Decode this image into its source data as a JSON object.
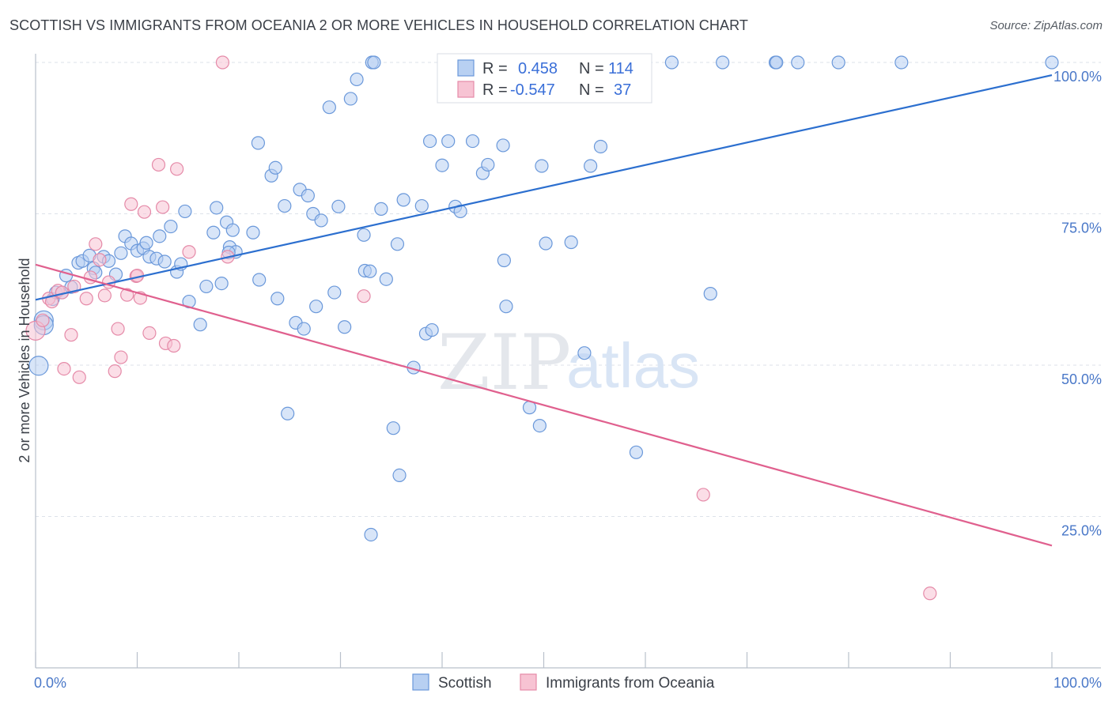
{
  "header": {
    "title": "SCOTTISH VS IMMIGRANTS FROM OCEANIA 2 OR MORE VEHICLES IN HOUSEHOLD CORRELATION CHART",
    "source": "Source: ZipAtlas.com"
  },
  "watermark": {
    "zip": "ZIP",
    "atlas": "atlas"
  },
  "legend": {
    "rows": [
      {
        "r_label": "R =",
        "r_value": "0.458",
        "n_label": "N =",
        "n_value": "114"
      },
      {
        "r_label": "R =",
        "r_value": "-0.547",
        "n_label": "N =",
        "n_value": "37"
      }
    ]
  },
  "bottom_legend": {
    "items": [
      "Scottish",
      "Immigrants from Oceania"
    ]
  },
  "colors": {
    "blue_fill": "#b8d0f2",
    "blue_stroke": "#6a98da",
    "blue_line": "#2c6fcf",
    "pink_fill": "#f7c3d3",
    "pink_stroke": "#e58aa8",
    "pink_line": "#e0608e",
    "grid": "#dde2ea",
    "axis": "#b9c0cb"
  },
  "chart_data": {
    "type": "scatter",
    "xlabel": "",
    "ylabel": "2 or more Vehicles in Household",
    "xlim": [
      0,
      100
    ],
    "ylim": [
      0,
      100
    ],
    "x_tick_labels": [
      "0.0%",
      "100.0%"
    ],
    "y_ticks": [
      25,
      50,
      75,
      100
    ],
    "y_tick_labels": [
      "25.0%",
      "50.0%",
      "75.0%",
      "100.0%"
    ],
    "grid": true,
    "series": [
      {
        "name": "Scottish",
        "color": "#6a98da",
        "trend": {
          "x": [
            0,
            100
          ],
          "y": [
            60.8,
            97.9
          ]
        },
        "points": [
          [
            0.3,
            49.9
          ],
          [
            0.8,
            57.4
          ],
          [
            0.8,
            56.6
          ],
          [
            1.7,
            60.9
          ],
          [
            2.0,
            62.0
          ],
          [
            2.6,
            62.0
          ],
          [
            3.0,
            64.8
          ],
          [
            3.5,
            62.9
          ],
          [
            4.2,
            66.9
          ],
          [
            4.6,
            67.2
          ],
          [
            5.3,
            68.1
          ],
          [
            5.7,
            66.0
          ],
          [
            5.9,
            65.3
          ],
          [
            6.7,
            67.9
          ],
          [
            7.2,
            67.2
          ],
          [
            7.9,
            65.0
          ],
          [
            8.4,
            68.5
          ],
          [
            8.8,
            71.3
          ],
          [
            9.4,
            70.1
          ],
          [
            10.0,
            68.9
          ],
          [
            10.6,
            69.3
          ],
          [
            10.9,
            70.2
          ],
          [
            11.2,
            67.9
          ],
          [
            11.9,
            67.6
          ],
          [
            12.2,
            71.3
          ],
          [
            12.7,
            67.1
          ],
          [
            13.3,
            72.9
          ],
          [
            13.9,
            65.4
          ],
          [
            14.3,
            66.7
          ],
          [
            14.7,
            75.4
          ],
          [
            15.1,
            60.5
          ],
          [
            16.2,
            56.7
          ],
          [
            16.8,
            63.0
          ],
          [
            17.5,
            71.9
          ],
          [
            17.8,
            76.0
          ],
          [
            18.3,
            63.5
          ],
          [
            18.8,
            73.6
          ],
          [
            19.1,
            69.5
          ],
          [
            19.4,
            72.3
          ],
          [
            19.7,
            68.7
          ],
          [
            21.4,
            71.9
          ],
          [
            21.9,
            86.7
          ],
          [
            22.0,
            64.1
          ],
          [
            23.2,
            81.3
          ],
          [
            23.6,
            82.6
          ],
          [
            23.8,
            61.0
          ],
          [
            24.5,
            76.3
          ],
          [
            24.8,
            42.0
          ],
          [
            25.6,
            57.0
          ],
          [
            26.0,
            79.0
          ],
          [
            26.4,
            56.0
          ],
          [
            26.8,
            78.0
          ],
          [
            27.3,
            75.0
          ],
          [
            27.6,
            59.7
          ],
          [
            28.1,
            73.9
          ],
          [
            28.9,
            92.6
          ],
          [
            29.4,
            62.0
          ],
          [
            29.8,
            76.2
          ],
          [
            30.4,
            56.3
          ],
          [
            31.0,
            94.0
          ],
          [
            31.6,
            97.2
          ],
          [
            32.3,
            71.5
          ],
          [
            32.4,
            65.6
          ],
          [
            32.9,
            65.5
          ],
          [
            33.1,
            100.0
          ],
          [
            33.3,
            100.0
          ],
          [
            34.0,
            75.8
          ],
          [
            34.5,
            64.2
          ],
          [
            35.2,
            39.6
          ],
          [
            35.6,
            70.0
          ],
          [
            35.8,
            31.8
          ],
          [
            36.2,
            77.3
          ],
          [
            37.2,
            49.6
          ],
          [
            38.0,
            76.3
          ],
          [
            38.4,
            55.2
          ],
          [
            38.8,
            87.0
          ],
          [
            39.0,
            55.8
          ],
          [
            40.0,
            83.0
          ],
          [
            40.6,
            87.0
          ],
          [
            41.3,
            76.2
          ],
          [
            41.8,
            75.4
          ],
          [
            43.0,
            87.0
          ],
          [
            44.0,
            81.7
          ],
          [
            44.5,
            83.1
          ],
          [
            46.0,
            86.3
          ],
          [
            46.1,
            67.3
          ],
          [
            46.3,
            59.7
          ],
          [
            48.0,
            95.0
          ],
          [
            48.6,
            43.0
          ],
          [
            49.0,
            100.0
          ],
          [
            49.6,
            40.0
          ],
          [
            49.8,
            82.9
          ],
          [
            50.2,
            70.1
          ],
          [
            51.4,
            100.0
          ],
          [
            52.7,
            70.3
          ],
          [
            53.4,
            100.0
          ],
          [
            54.0,
            52.0
          ],
          [
            54.6,
            82.9
          ],
          [
            55.0,
            100.0
          ],
          [
            55.6,
            86.1
          ],
          [
            58.0,
            100.0
          ],
          [
            59.1,
            35.6
          ],
          [
            60.0,
            100.0
          ],
          [
            62.6,
            100.0
          ],
          [
            66.4,
            61.8
          ],
          [
            67.6,
            100.0
          ],
          [
            72.8,
            100.0
          ],
          [
            72.9,
            100.0
          ],
          [
            75.0,
            100.0
          ],
          [
            79.0,
            100.0
          ],
          [
            85.2,
            100.0
          ],
          [
            100.0,
            100.0
          ],
          [
            33.0,
            22.0
          ],
          [
            19.0,
            68.6
          ]
        ]
      },
      {
        "name": "Immigrants from Oceania",
        "color": "#e58aa8",
        "trend": {
          "x": [
            0,
            100
          ],
          "y": [
            66.6,
            20.2
          ]
        },
        "points": [
          [
            0.0,
            55.7
          ],
          [
            0.7,
            57.4
          ],
          [
            1.3,
            61.0
          ],
          [
            1.6,
            60.5
          ],
          [
            2.2,
            62.3
          ],
          [
            2.6,
            62.0
          ],
          [
            2.8,
            49.4
          ],
          [
            3.5,
            55.0
          ],
          [
            3.8,
            63.0
          ],
          [
            4.3,
            48.0
          ],
          [
            5.0,
            61.0
          ],
          [
            5.4,
            64.5
          ],
          [
            5.9,
            70.0
          ],
          [
            6.3,
            67.4
          ],
          [
            6.8,
            61.5
          ],
          [
            7.2,
            63.7
          ],
          [
            7.8,
            49.0
          ],
          [
            8.1,
            56.0
          ],
          [
            8.4,
            51.3
          ],
          [
            9.0,
            61.6
          ],
          [
            9.4,
            76.6
          ],
          [
            9.9,
            64.7
          ],
          [
            10.3,
            61.1
          ],
          [
            10.7,
            75.3
          ],
          [
            11.2,
            55.3
          ],
          [
            12.1,
            83.1
          ],
          [
            12.5,
            76.1
          ],
          [
            12.8,
            53.6
          ],
          [
            13.6,
            53.2
          ],
          [
            13.9,
            82.4
          ],
          [
            15.1,
            68.7
          ],
          [
            18.4,
            100.0
          ],
          [
            18.9,
            67.9
          ],
          [
            32.3,
            61.4
          ],
          [
            65.7,
            28.6
          ],
          [
            88.0,
            12.3
          ],
          [
            10.0,
            64.8
          ]
        ]
      }
    ]
  }
}
